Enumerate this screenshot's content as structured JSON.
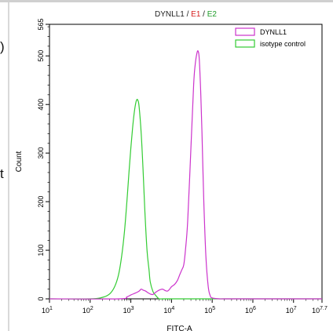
{
  "chart_data": {
    "type": "line",
    "title_parts": [
      {
        "text": "DYNLL1",
        "color": "#222222"
      },
      {
        "text": " / ",
        "color": "#222222"
      },
      {
        "text": "E1",
        "color": "#d62020"
      },
      {
        "text": " / ",
        "color": "#222222"
      },
      {
        "text": "E2",
        "color": "#1f9e2a"
      }
    ],
    "xlabel": "FITC-A",
    "ylabel": "Count",
    "x_scale": "log",
    "xlim": [
      10,
      50118723
    ],
    "ylim": [
      0,
      565
    ],
    "x_ticks": [
      {
        "value": 10,
        "base": "10",
        "exp": "1"
      },
      {
        "value": 100,
        "base": "10",
        "exp": "2"
      },
      {
        "value": 1000,
        "base": "10",
        "exp": "3"
      },
      {
        "value": 10000,
        "base": "10",
        "exp": "4"
      },
      {
        "value": 100000,
        "base": "10",
        "exp": "5"
      },
      {
        "value": 1000000,
        "base": "10",
        "exp": "6"
      },
      {
        "value": 10000000,
        "base": "10",
        "exp": "7"
      },
      {
        "value": 50118723,
        "base": "10",
        "exp": "7.7"
      }
    ],
    "y_ticks": [
      0,
      100,
      200,
      300,
      400,
      500,
      565
    ],
    "legend_position": "top-right",
    "series": [
      {
        "name": "DYNLL1",
        "color": "#cc33cc",
        "x": [
          10,
          500,
          800,
          1000,
          1300,
          1600,
          1800,
          2000,
          2300,
          2600,
          3000,
          3500,
          4000,
          5000,
          6000,
          7000,
          8000,
          9000,
          10000,
          12000,
          14000,
          16000,
          18000,
          20000,
          22000,
          25000,
          30000,
          35000,
          38000,
          42000,
          45000,
          48000,
          52000,
          56000,
          62000,
          70000,
          80000,
          90000,
          100000,
          150000,
          200000,
          1000000,
          50118723
        ],
        "y": [
          0,
          0,
          4,
          8,
          12,
          16,
          20,
          18,
          16,
          13,
          10,
          9,
          13,
          18,
          20,
          17,
          16,
          20,
          25,
          30,
          38,
          50,
          60,
          70,
          100,
          160,
          310,
          440,
          480,
          505,
          510,
          495,
          430,
          345,
          205,
          88,
          25,
          6,
          2,
          0,
          0,
          0,
          0
        ]
      },
      {
        "name": "isotype control",
        "color": "#33cc33",
        "x": [
          10,
          100,
          200,
          300,
          400,
          500,
          600,
          700,
          800,
          900,
          1000,
          1100,
          1200,
          1300,
          1400,
          1500,
          1600,
          1800,
          2000,
          2200,
          2500,
          2800,
          3000,
          3500,
          4000,
          4500,
          5000,
          6000,
          7000,
          10000,
          100000,
          50118723
        ],
        "y": [
          0,
          0,
          3,
          10,
          25,
          50,
          90,
          140,
          200,
          260,
          310,
          350,
          380,
          400,
          410,
          408,
          395,
          340,
          265,
          185,
          100,
          60,
          35,
          15,
          8,
          3,
          0,
          0,
          0,
          0,
          0,
          0
        ]
      }
    ]
  },
  "page_edge_glyphs": {
    "paren": ")",
    "letter": "t"
  }
}
